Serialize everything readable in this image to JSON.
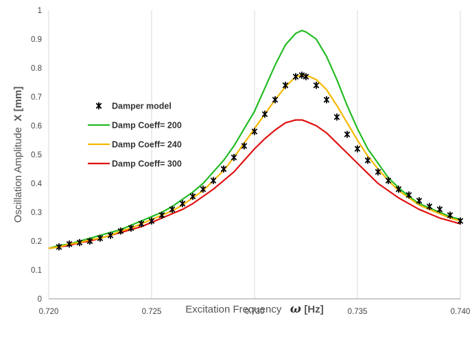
{
  "chart_data": {
    "type": "line",
    "title": "",
    "xlabel": "Excitation Frequency",
    "xlabel_symbol": "ω",
    "xlabel_unit": "[Hz]",
    "ylabel": "Oscillation Amplitude",
    "ylabel_symbol": "X [mm]",
    "xlim": [
      0.72,
      0.74
    ],
    "ylim": [
      0,
      1
    ],
    "xticks": [
      "0.720",
      "0.725",
      "0.730",
      "0.735",
      "0.740"
    ],
    "yticks": [
      "0",
      "0.1",
      "0.2",
      "0.3",
      "0.4",
      "0.5",
      "0.6",
      "0.7",
      "0.8",
      "0.9",
      "1"
    ],
    "grid": "vertical",
    "legend_position": "left-center",
    "series": [
      {
        "name": "Damper model",
        "kind": "markers",
        "marker": "asterisk",
        "color": "#000000",
        "x": [
          0.7205,
          0.721,
          0.7215,
          0.722,
          0.7225,
          0.723,
          0.7235,
          0.724,
          0.7245,
          0.725,
          0.7255,
          0.726,
          0.7265,
          0.727,
          0.7275,
          0.728,
          0.7285,
          0.729,
          0.7295,
          0.73,
          0.7305,
          0.731,
          0.7315,
          0.732,
          0.7323,
          0.7325,
          0.733,
          0.7335,
          0.734,
          0.7345,
          0.735,
          0.7355,
          0.736,
          0.7365,
          0.737,
          0.7375,
          0.738,
          0.7385,
          0.739,
          0.7395,
          0.74
        ],
        "values": [
          0.18,
          0.19,
          0.195,
          0.2,
          0.21,
          0.22,
          0.235,
          0.245,
          0.26,
          0.27,
          0.29,
          0.31,
          0.33,
          0.355,
          0.38,
          0.41,
          0.45,
          0.49,
          0.53,
          0.58,
          0.64,
          0.69,
          0.74,
          0.77,
          0.775,
          0.77,
          0.74,
          0.69,
          0.63,
          0.57,
          0.52,
          0.48,
          0.44,
          0.41,
          0.38,
          0.36,
          0.34,
          0.32,
          0.31,
          0.29,
          0.27
        ]
      },
      {
        "name": "Damp Coeff= 200",
        "kind": "line",
        "color": "#22bb22",
        "x": [
          0.72,
          0.7205,
          0.721,
          0.7215,
          0.722,
          0.7225,
          0.723,
          0.7235,
          0.724,
          0.7245,
          0.725,
          0.7255,
          0.726,
          0.7265,
          0.727,
          0.7275,
          0.728,
          0.7285,
          0.729,
          0.7295,
          0.73,
          0.7305,
          0.731,
          0.7315,
          0.732,
          0.7323,
          0.7325,
          0.733,
          0.7335,
          0.734,
          0.7345,
          0.735,
          0.7355,
          0.736,
          0.7365,
          0.737,
          0.7375,
          0.738,
          0.7385,
          0.739,
          0.7395,
          0.74
        ],
        "values": [
          0.175,
          0.185,
          0.19,
          0.2,
          0.21,
          0.22,
          0.23,
          0.24,
          0.255,
          0.27,
          0.285,
          0.3,
          0.32,
          0.345,
          0.37,
          0.4,
          0.44,
          0.48,
          0.53,
          0.59,
          0.65,
          0.73,
          0.81,
          0.88,
          0.92,
          0.93,
          0.925,
          0.9,
          0.84,
          0.76,
          0.67,
          0.59,
          0.52,
          0.47,
          0.42,
          0.385,
          0.355,
          0.33,
          0.315,
          0.3,
          0.285,
          0.275
        ]
      },
      {
        "name": "Damp Coeff= 240",
        "kind": "line",
        "color": "#f5b800",
        "x": [
          0.72,
          0.7205,
          0.721,
          0.7215,
          0.722,
          0.7225,
          0.723,
          0.7235,
          0.724,
          0.7245,
          0.725,
          0.7255,
          0.726,
          0.7265,
          0.727,
          0.7275,
          0.728,
          0.7285,
          0.729,
          0.7295,
          0.73,
          0.7305,
          0.731,
          0.7315,
          0.732,
          0.7323,
          0.7325,
          0.733,
          0.7335,
          0.734,
          0.7345,
          0.735,
          0.7355,
          0.736,
          0.7365,
          0.737,
          0.7375,
          0.738,
          0.7385,
          0.739,
          0.7395,
          0.74
        ],
        "values": [
          0.175,
          0.18,
          0.19,
          0.195,
          0.205,
          0.21,
          0.22,
          0.235,
          0.245,
          0.26,
          0.275,
          0.29,
          0.305,
          0.325,
          0.35,
          0.375,
          0.41,
          0.445,
          0.49,
          0.54,
          0.59,
          0.64,
          0.69,
          0.735,
          0.77,
          0.775,
          0.775,
          0.76,
          0.725,
          0.67,
          0.61,
          0.55,
          0.495,
          0.45,
          0.41,
          0.375,
          0.35,
          0.325,
          0.31,
          0.295,
          0.28,
          0.27
        ]
      },
      {
        "name": "Damp Coeff= 300",
        "kind": "line",
        "color": "#e01010",
        "x": [
          0.72,
          0.7205,
          0.721,
          0.7215,
          0.722,
          0.7225,
          0.723,
          0.7235,
          0.724,
          0.7245,
          0.725,
          0.7255,
          0.726,
          0.7265,
          0.727,
          0.7275,
          0.728,
          0.7285,
          0.729,
          0.7295,
          0.73,
          0.7305,
          0.731,
          0.7315,
          0.732,
          0.7323,
          0.7325,
          0.733,
          0.7335,
          0.734,
          0.7345,
          0.735,
          0.7355,
          0.736,
          0.7365,
          0.737,
          0.7375,
          0.738,
          0.7385,
          0.739,
          0.7395,
          0.74
        ],
        "values": [
          0.175,
          0.18,
          0.185,
          0.195,
          0.2,
          0.21,
          0.22,
          0.23,
          0.24,
          0.25,
          0.265,
          0.28,
          0.295,
          0.31,
          0.33,
          0.355,
          0.38,
          0.41,
          0.44,
          0.48,
          0.52,
          0.555,
          0.585,
          0.61,
          0.62,
          0.62,
          0.615,
          0.6,
          0.575,
          0.54,
          0.505,
          0.47,
          0.435,
          0.4,
          0.375,
          0.35,
          0.33,
          0.31,
          0.295,
          0.28,
          0.27,
          0.26
        ]
      }
    ]
  }
}
